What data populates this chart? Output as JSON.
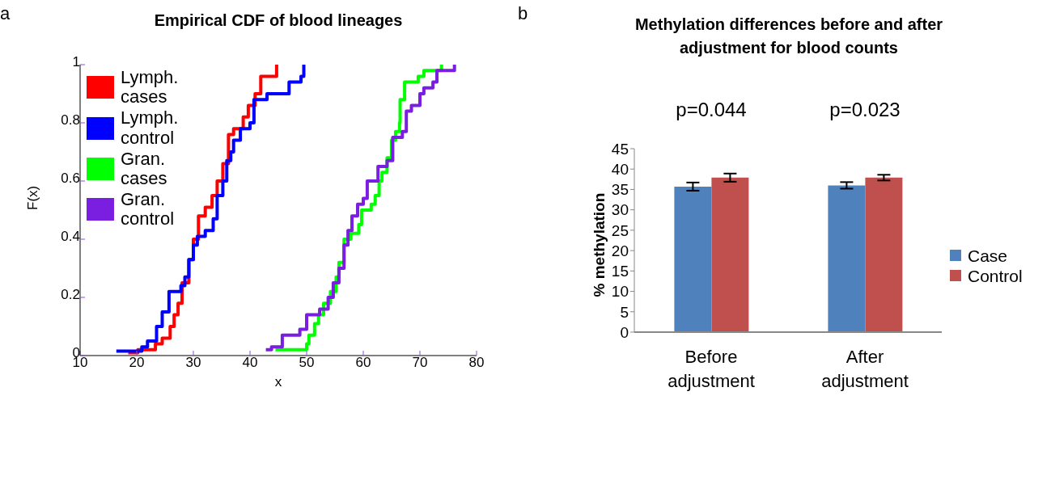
{
  "chart_data": [
    {
      "type": "step",
      "title": "Empirical CDF of blood lineages",
      "xlabel": "x",
      "ylabel": "F(x)",
      "annotations": [
        "a"
      ],
      "xlim": [
        10,
        80
      ],
      "xticks": [
        10,
        20,
        30,
        40,
        50,
        60,
        70,
        80
      ],
      "ylim": [
        0,
        1
      ],
      "yticks": [
        0,
        0.2,
        0.4,
        0.6,
        0.8,
        1
      ],
      "grid": false,
      "legend": "top left",
      "marker": "none",
      "line_style": "solid",
      "series": [
        {
          "name": "Lymph. cases",
          "color": "#ff0000",
          "x": [
            18.5,
            20.2,
            23.3,
            24.5,
            25.9,
            26.6,
            27.3,
            28.0,
            29.2,
            30.0,
            30.9,
            32.1,
            33.3,
            34.2,
            35.2,
            36.2,
            37.1,
            38.8,
            39.7,
            40.9,
            41.9,
            44.7
          ],
          "values": [
            0.01,
            0.02,
            0.04,
            0.06,
            0.1,
            0.14,
            0.18,
            0.25,
            0.33,
            0.4,
            0.48,
            0.51,
            0.55,
            0.6,
            0.66,
            0.76,
            0.78,
            0.82,
            0.86,
            0.9,
            0.96,
            1
          ]
        },
        {
          "name": "Lymph. control",
          "color": "#0000ff",
          "x": [
            16.4,
            20.9,
            21.9,
            23.5,
            24.5,
            25.7,
            27.8,
            28.5,
            29.2,
            30.0,
            30.7,
            32.1,
            33.5,
            34.2,
            35.2,
            35.9,
            36.6,
            37.1,
            38.3,
            40.0,
            40.7,
            43.0,
            46.9,
            49.0,
            49.5
          ],
          "values": [
            0.015,
            0.03,
            0.05,
            0.1,
            0.15,
            0.22,
            0.24,
            0.27,
            0.33,
            0.38,
            0.41,
            0.43,
            0.47,
            0.55,
            0.6,
            0.67,
            0.7,
            0.74,
            0.78,
            0.8,
            0.88,
            0.9,
            0.94,
            0.96,
            1
          ]
        },
        {
          "name": "Gran. cases",
          "color": "#00ff00",
          "x": [
            44.5,
            50.0,
            50.4,
            51.4,
            52.1,
            53.0,
            54.2,
            55.2,
            55.7,
            56.6,
            57.8,
            59.2,
            59.7,
            61.4,
            62.1,
            62.8,
            63.3,
            64.2,
            65.0,
            65.7,
            66.4,
            66.5,
            67.3,
            69.7,
            70.7,
            73.8
          ],
          "values": [
            0.02,
            0.04,
            0.07,
            0.11,
            0.14,
            0.18,
            0.22,
            0.27,
            0.32,
            0.4,
            0.42,
            0.45,
            0.5,
            0.52,
            0.55,
            0.6,
            0.63,
            0.68,
            0.74,
            0.77,
            0.8,
            0.88,
            0.94,
            0.96,
            0.98,
            1
          ]
        },
        {
          "name": "Gran. control",
          "color": "#7a1ee0",
          "x": [
            42.8,
            43.8,
            45.7,
            48.8,
            50.0,
            52.3,
            53.8,
            54.7,
            55.7,
            56.6,
            57.3,
            58.0,
            59.0,
            60.0,
            60.7,
            62.6,
            64.2,
            65.2,
            66.9,
            67.6,
            68.5,
            70.0,
            70.7,
            72.3,
            73.0,
            76.1
          ],
          "values": [
            0.02,
            0.03,
            0.07,
            0.09,
            0.14,
            0.16,
            0.2,
            0.25,
            0.3,
            0.38,
            0.43,
            0.48,
            0.52,
            0.54,
            0.6,
            0.65,
            0.67,
            0.75,
            0.77,
            0.84,
            0.86,
            0.9,
            0.92,
            0.94,
            0.98,
            1
          ]
        }
      ]
    },
    {
      "type": "bar",
      "title": "Methylation differences before and after adjustment  for blood counts",
      "ylabel": "% methylation",
      "annotations": [
        "b",
        "p=0.044",
        "p=0.023"
      ],
      "categories": [
        "Before adjustment",
        "After adjustment"
      ],
      "ylim": [
        0,
        45
      ],
      "yticks": [
        0,
        5,
        10,
        15,
        20,
        25,
        30,
        35,
        40,
        45
      ],
      "grid": false,
      "legend": "right",
      "series": [
        {
          "name": "Case",
          "color": "#4f81bd",
          "values": [
            35.7,
            36.0
          ],
          "errors": [
            1.0,
            0.8
          ]
        },
        {
          "name": "Control",
          "color": "#c0504d",
          "values": [
            37.9,
            37.9
          ],
          "errors": [
            1.0,
            0.7
          ]
        }
      ]
    }
  ]
}
